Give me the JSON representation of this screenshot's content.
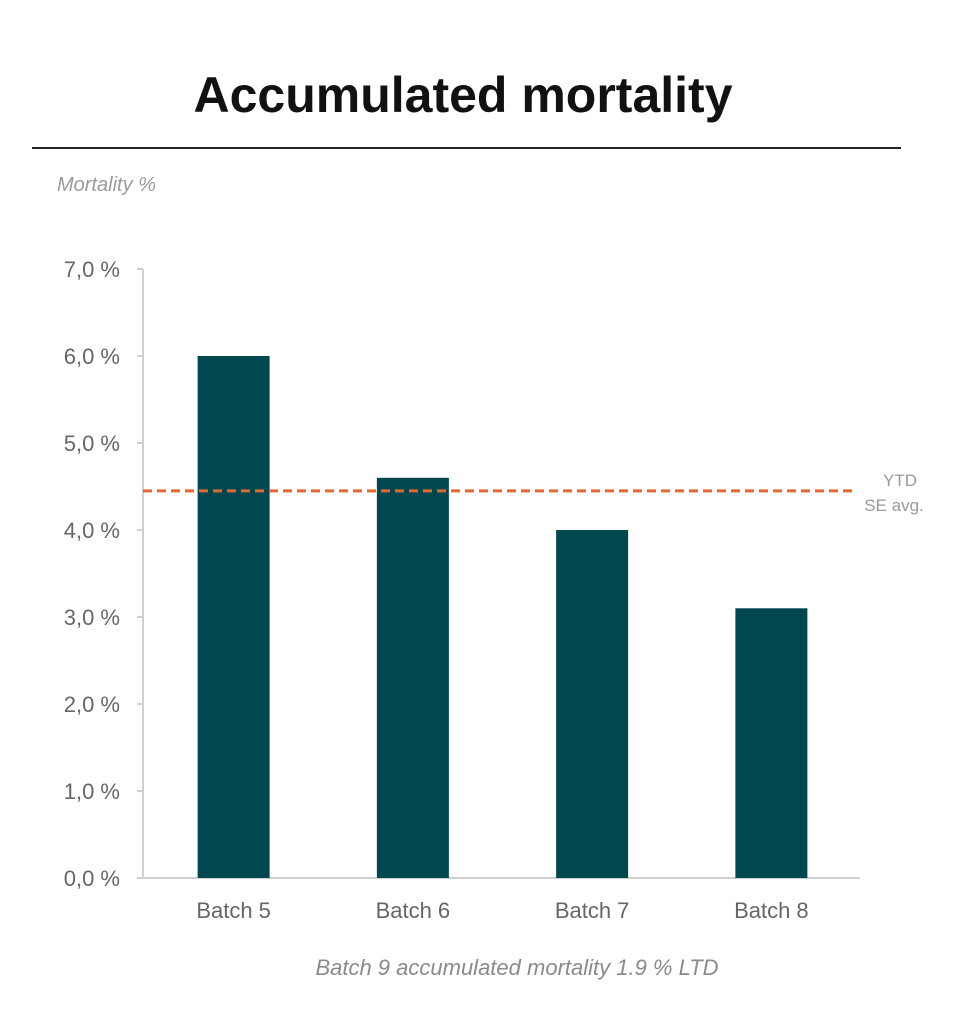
{
  "chart_data": {
    "type": "bar",
    "title": "Accumulated mortality",
    "ylabel": "Mortality %",
    "xlabel": "",
    "categories": [
      "Batch 5",
      "Batch 6",
      "Batch 7",
      "Batch 8"
    ],
    "values": [
      6.0,
      4.6,
      4.0,
      3.1
    ],
    "ylim": [
      0,
      7
    ],
    "yticks": [
      0,
      1,
      2,
      3,
      4,
      5,
      6,
      7
    ],
    "ytick_labels": [
      "0,0 %",
      "1,0 %",
      "2,0 %",
      "3,0 %",
      "4,0 %",
      "5,0 %",
      "6,0 %",
      "7,0 %"
    ],
    "grid": false,
    "reference_line": {
      "value": 4.45,
      "label_line1": "YTD",
      "label_line2": "SE avg.",
      "style": "dashed",
      "color": "#e2692b"
    },
    "bar_color": "#004750",
    "footnote": "Batch 9 accumulated mortality 1.9 % LTD"
  }
}
